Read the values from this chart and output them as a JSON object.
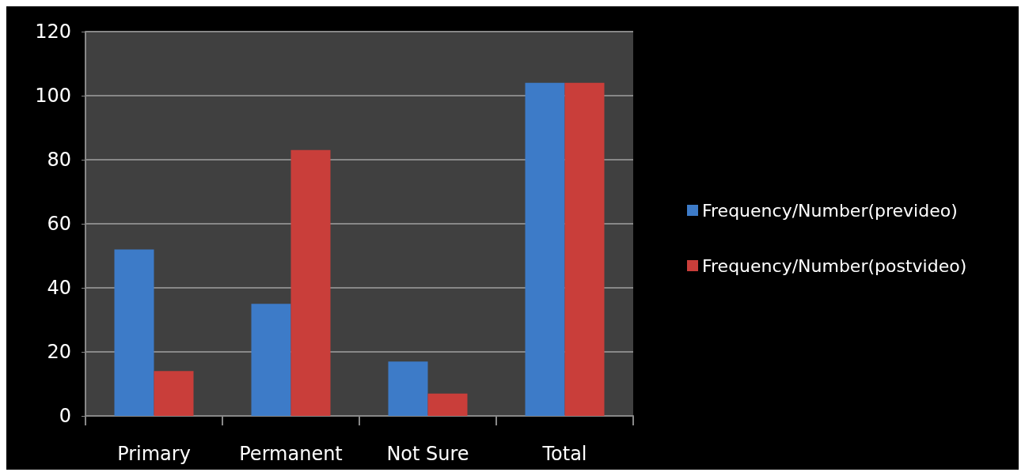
{
  "chart_data": {
    "type": "bar",
    "categories": [
      "Primary",
      "Permanent",
      "Not Sure",
      "Total"
    ],
    "series": [
      {
        "name": "Frequency/Number(prevideo)",
        "color": "#3d7bc8",
        "values": [
          52,
          35,
          17,
          104
        ]
      },
      {
        "name": "Frequency/Number(postvideo)",
        "color": "#c93e3a",
        "values": [
          14,
          83,
          7,
          104
        ]
      }
    ],
    "ylim": [
      0,
      120
    ],
    "yticks": [
      0,
      20,
      40,
      60,
      80,
      100,
      120
    ],
    "grid": "y",
    "legend": "right"
  }
}
